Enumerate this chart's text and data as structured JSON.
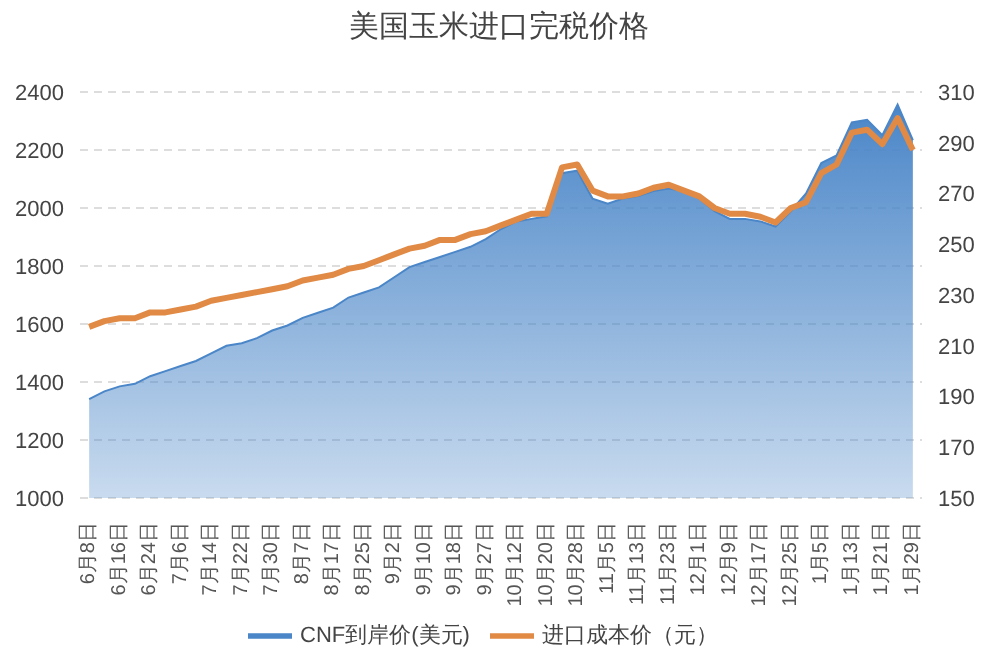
{
  "chart_data": {
    "type": "area",
    "title": "美国玉米进口完税价格",
    "categories": [
      "6月8日",
      null,
      "6月16日",
      null,
      "6月24日",
      null,
      "7月6日",
      null,
      "7月14日",
      null,
      "7月22日",
      null,
      "7月30日",
      null,
      "8月7日",
      null,
      "8月17日",
      null,
      "8月25日",
      null,
      "9月2日",
      null,
      "9月10日",
      null,
      "9月18日",
      null,
      "9月27日",
      null,
      "10月12日",
      null,
      "10月20日",
      null,
      "10月28日",
      null,
      "11月5日",
      null,
      "11月13日",
      null,
      "11月23日",
      null,
      "12月1日",
      null,
      "12月9日",
      null,
      "12月17日",
      null,
      "12月25日",
      null,
      "1月5日",
      null,
      "1月13日",
      null,
      "1月21日",
      null,
      "1月29日"
    ],
    "series": [
      {
        "name": "CNF到岸价(美元)",
        "axis": "y2",
        "color": "#4a86c8",
        "values": [
          189,
          192,
          194,
          195,
          198,
          200,
          202,
          204,
          207,
          210,
          211,
          213,
          216,
          218,
          221,
          223,
          225,
          229,
          231,
          233,
          237,
          241,
          243,
          245,
          247,
          249,
          252,
          256,
          259,
          260,
          261,
          278,
          279,
          268,
          266,
          268,
          269,
          271,
          272,
          271,
          268,
          263,
          260,
          260,
          259,
          257,
          263,
          270,
          282,
          285,
          298,
          299,
          293,
          305,
          291
        ]
      },
      {
        "name": "进口成本价（元）",
        "type": "line",
        "color": "#e08a45",
        "values": [
          1590,
          1610,
          1620,
          1620,
          1640,
          1640,
          1650,
          1660,
          1680,
          1690,
          1700,
          1710,
          1720,
          1730,
          1750,
          1760,
          1770,
          1790,
          1800,
          1820,
          1840,
          1860,
          1870,
          1890,
          1890,
          1910,
          1920,
          1940,
          1960,
          1980,
          1980,
          2140,
          2150,
          2060,
          2040,
          2040,
          2050,
          2070,
          2080,
          2060,
          2040,
          2000,
          1980,
          1980,
          1970,
          1950,
          2000,
          2020,
          2120,
          2150,
          2260,
          2270,
          2220,
          2310,
          2200
        ]
      }
    ],
    "ylim": [
      1000,
      2400
    ],
    "yticks": [
      1000,
      1200,
      1400,
      1600,
      1800,
      2000,
      2200,
      2400
    ],
    "y2lim": [
      150,
      310
    ],
    "y2ticks": [
      150,
      170,
      190,
      210,
      230,
      250,
      270,
      290,
      310
    ],
    "grid": "y",
    "legend": "bottom",
    "marker": "none"
  }
}
